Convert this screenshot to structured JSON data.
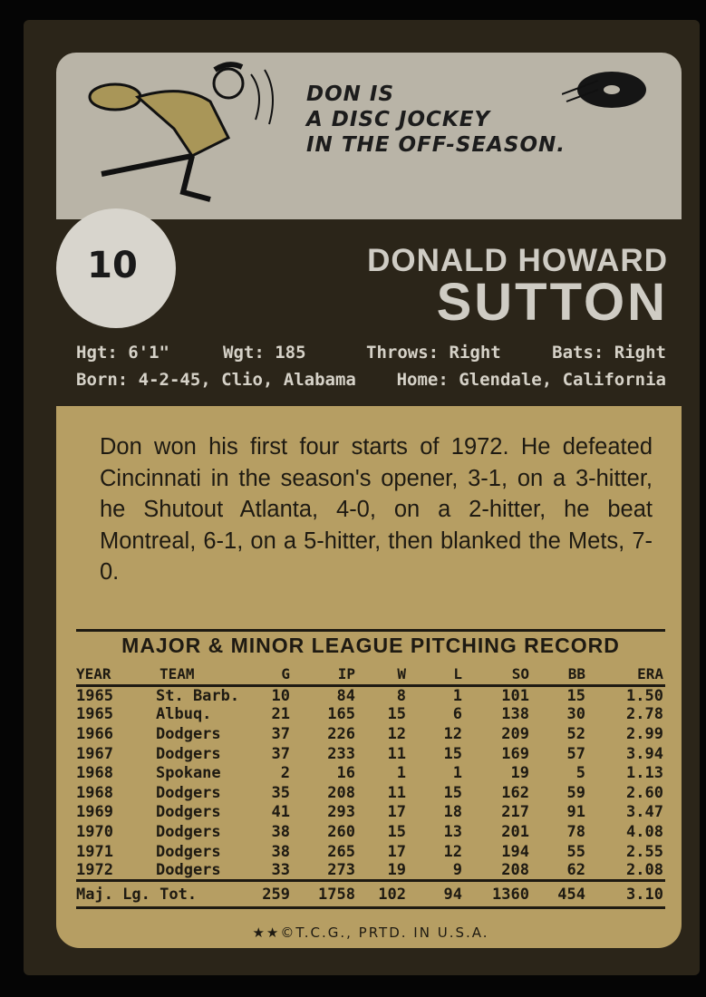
{
  "card_number": "10",
  "cartoon": {
    "lines": [
      "DON IS",
      "A DISC JOCKEY",
      "IN THE OFF-SEASON."
    ]
  },
  "name": {
    "first": "DONALD HOWARD",
    "last": "SUTTON"
  },
  "info": {
    "height": "Hgt: 6'1\"",
    "weight": "Wgt: 185",
    "throws": "Throws: Right",
    "bats": "Bats: Right",
    "born": "Born: 4-2-45, Clio, Alabama",
    "home": "Home: Glendale, California"
  },
  "bio": "Don won his first four starts of 1972. He defeated Cincinnati in the season's opener, 3-1, on a 3-hitter, he Shutout Atlanta, 4-0, on a 2-hitter, he beat Montreal, 6-1, on a 5-hitter, then blanked the Mets, 7-0.",
  "record": {
    "title": "MAJOR & MINOR LEAGUE PITCHING RECORD",
    "columns": [
      "YEAR",
      "TEAM",
      "G",
      "IP",
      "W",
      "L",
      "SO",
      "BB",
      "ERA"
    ],
    "rows": [
      [
        "1965",
        "St. Barb.",
        "10",
        "84",
        "8",
        "1",
        "101",
        "15",
        "1.50"
      ],
      [
        "1965",
        "Albuq.",
        "21",
        "165",
        "15",
        "6",
        "138",
        "30",
        "2.78"
      ],
      [
        "1966",
        "Dodgers",
        "37",
        "226",
        "12",
        "12",
        "209",
        "52",
        "2.99"
      ],
      [
        "1967",
        "Dodgers",
        "37",
        "233",
        "11",
        "15",
        "169",
        "57",
        "3.94"
      ],
      [
        "1968",
        "Spokane",
        "2",
        "16",
        "1",
        "1",
        "19",
        "5",
        "1.13"
      ],
      [
        "1968",
        "Dodgers",
        "35",
        "208",
        "11",
        "15",
        "162",
        "59",
        "2.60"
      ],
      [
        "1969",
        "Dodgers",
        "41",
        "293",
        "17",
        "18",
        "217",
        "91",
        "3.47"
      ],
      [
        "1970",
        "Dodgers",
        "38",
        "260",
        "15",
        "13",
        "201",
        "78",
        "4.08"
      ],
      [
        "1971",
        "Dodgers",
        "38",
        "265",
        "17",
        "12",
        "194",
        "55",
        "2.55"
      ],
      [
        "1972",
        "Dodgers",
        "33",
        "273",
        "19",
        "9",
        "208",
        "62",
        "2.08"
      ]
    ],
    "totals": [
      "Maj. Lg. Tot.",
      "259",
      "1758",
      "102",
      "94",
      "1360",
      "454",
      "3.10"
    ]
  },
  "copyright": "★★©T.C.G., PRTD. IN U.S.A."
}
